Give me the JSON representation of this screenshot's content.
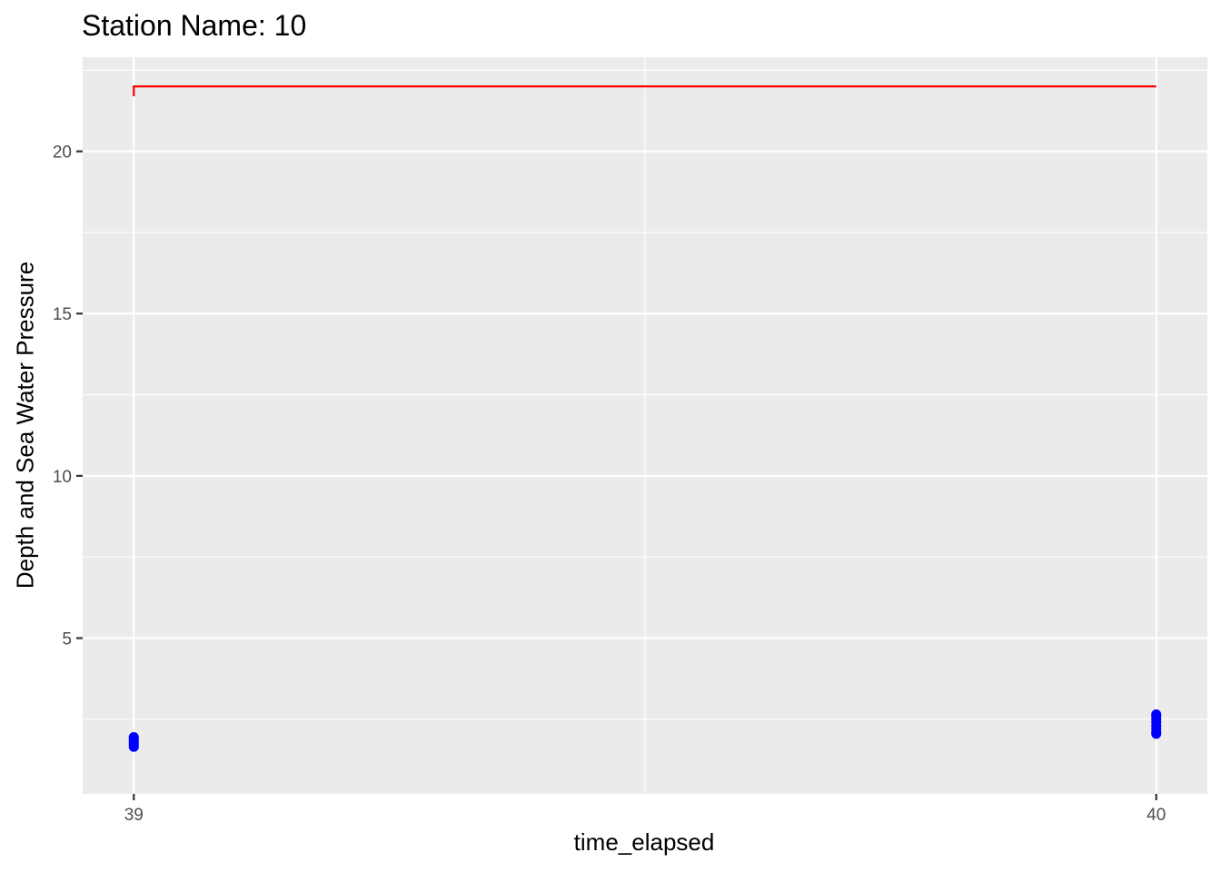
{
  "chart_data": {
    "type": "line",
    "title": "Station Name: 10",
    "xlabel": "time_elapsed",
    "ylabel": "Depth and Sea Water Pressure",
    "xlim": [
      38.95,
      40.05
    ],
    "ylim": [
      0.2,
      22.9
    ],
    "x_ticks": [
      39,
      40
    ],
    "y_ticks": [
      5,
      10,
      15,
      20
    ],
    "grid": true,
    "legend": "none",
    "colors": {
      "panel": "#EBEBEB",
      "grid": "#FFFFFF",
      "line": "#FF0000",
      "points": "#0000FF"
    },
    "series": [
      {
        "kind": "line",
        "color": "#FF0000",
        "points": [
          [
            39,
            21.7
          ],
          [
            39,
            22.0
          ],
          [
            40,
            22.0
          ]
        ]
      },
      {
        "kind": "scatter",
        "color": "#0000FF",
        "points": [
          [
            39,
            1.65
          ],
          [
            39,
            1.7
          ],
          [
            39,
            1.75
          ],
          [
            39,
            1.8
          ],
          [
            39,
            1.85
          ],
          [
            39,
            1.9
          ],
          [
            39,
            1.95
          ],
          [
            40,
            2.05
          ],
          [
            40,
            2.1
          ],
          [
            40,
            2.2
          ],
          [
            40,
            2.3
          ],
          [
            40,
            2.4
          ],
          [
            40,
            2.5
          ],
          [
            40,
            2.6
          ],
          [
            40,
            2.65
          ]
        ]
      }
    ]
  }
}
